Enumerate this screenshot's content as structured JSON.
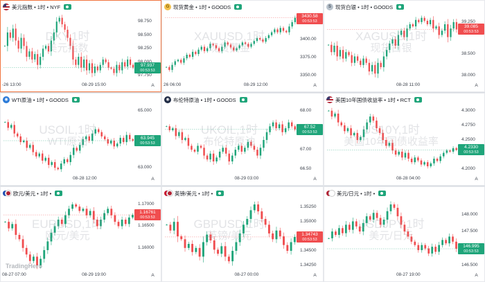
{
  "colors": {
    "up": "#1fa57a",
    "down": "#f04d4f",
    "active_border": "#f0753f"
  },
  "brand": "TradingHero",
  "panels": [
    {
      "title": "美元指数 • 1时 • NYF",
      "icon": "us-flag-icon",
      "wm1": "DXY,1时",
      "wm2": "美元指数",
      "yticks": [
        98.75,
        98.5,
        98.25,
        98.0,
        97.75
      ],
      "yticks_text": [
        "98.750",
        "98.500",
        "98.250",
        "98.000",
        "97.750"
      ],
      "xticks": [
        "-26 13:00",
        "08-29 15:00"
      ],
      "price": "97.937",
      "time": "00:53:53",
      "dir": "up",
      "series": [
        98.3,
        98.55,
        98.45,
        98.62,
        98.4,
        98.25,
        98.45,
        98.3,
        98.1,
        98.2,
        98.05,
        98.15,
        97.95,
        98.1,
        98.25,
        98.3,
        98.2,
        98.4,
        98.55,
        98.75,
        98.82,
        98.7,
        98.6,
        98.45,
        98.3,
        98.05,
        97.95,
        98.1,
        97.9,
        98.05,
        97.85,
        97.98,
        97.8,
        97.92,
        97.85,
        97.95,
        98.05,
        98.0,
        97.9,
        97.88,
        97.8,
        97.95,
        97.85,
        98.0,
        97.92,
        98.05,
        97.95,
        97.9
      ],
      "active": true
    },
    {
      "title": "现货黄金 • 1时 • GOODS",
      "icon": "gold-icon",
      "wm1": "XAUUSD,1时",
      "wm2": "现货黄金",
      "yticks": [
        3400.0,
        3375.0,
        3350.0
      ],
      "yticks_text": [
        "3400.00",
        "3375.00",
        "3350.00"
      ],
      "xticks": [
        "26 06:00",
        "08-29 12:00"
      ],
      "price": "3430.58",
      "time": "00:53:53",
      "dir": "down",
      "series": [
        3362,
        3358,
        3365,
        3370,
        3372,
        3368,
        3374,
        3379,
        3376,
        3383,
        3380,
        3386,
        3390,
        3384,
        3388,
        3394,
        3392,
        3388,
        3384,
        3390,
        3396,
        3393,
        3389,
        3385,
        3388,
        3392,
        3396,
        3394,
        3390,
        3394,
        3398,
        3402,
        3400,
        3397,
        3402,
        3406,
        3410,
        3414,
        3410,
        3416,
        3412,
        3410,
        3418,
        3424,
        3430
      ],
      "active": false
    },
    {
      "title": "现货白银 • 1时 • GOODS",
      "icon": "silver-icon",
      "wm1": "XAGUSD,1时",
      "wm2": "现货白银",
      "yticks": [
        39.25,
        39.0,
        38.5,
        38.0
      ],
      "yticks_text": [
        "39.250",
        "39.000",
        "38.500",
        "38.000"
      ],
      "xticks": [
        "08-28 11:00"
      ],
      "price": "39.085",
      "time": "00:53:53",
      "dir": "down",
      "series": [
        38.72,
        38.55,
        38.7,
        38.45,
        38.6,
        38.4,
        38.55,
        38.48,
        38.3,
        38.45,
        38.35,
        38.25,
        38.4,
        38.3,
        38.1,
        38.25,
        38.05,
        38.3,
        38.2,
        38.45,
        38.6,
        38.75,
        38.85,
        38.7,
        38.95,
        39.05,
        38.9,
        39.1,
        39.2,
        39.15,
        39.3,
        39.25,
        39.35,
        39.28,
        39.2,
        39.3,
        39.1,
        39.15,
        38.95,
        39.05,
        39.2,
        38.9,
        39.1,
        39.25,
        39.08
      ],
      "active": false
    },
    {
      "title": "WTI原油 • 1时 • GOODS",
      "icon": "wti-oil-icon",
      "wm1": "USOIL,1时",
      "wm2": "WTI原油",
      "yticks": [
        65.0,
        64.0,
        63.0
      ],
      "yticks_text": [
        "65.000",
        "64.000",
        "63.000"
      ],
      "xticks": [
        "08-28 12:00"
      ],
      "price": "63.945",
      "time": "00:53:53",
      "dir": "up",
      "series": [
        64.6,
        64.4,
        64.5,
        64.2,
        64.1,
        63.9,
        63.95,
        63.7,
        63.8,
        63.55,
        63.4,
        63.5,
        63.25,
        63.35,
        63.1,
        63.2,
        63.0,
        62.95,
        63.15,
        63.3,
        63.2,
        63.45,
        63.7,
        63.6,
        63.8,
        64.0,
        64.1,
        63.95,
        64.2,
        64.35,
        64.25,
        64.1,
        64.0,
        63.85,
        63.95,
        63.75,
        63.85,
        64.05,
        63.9,
        64.15,
        64.0,
        63.95
      ],
      "active": false
    },
    {
      "title": "布伦特原油 • 1时 • GOODS",
      "icon": "brent-oil-icon",
      "wm1": "UKOIL,1时",
      "wm2": "布伦特原油",
      "yticks": [
        68.0,
        67.5,
        67.0,
        66.5
      ],
      "yticks_text": [
        "68.00",
        "67.50",
        "67.00",
        "66.50"
      ],
      "xticks": [
        "08-29 03:00"
      ],
      "price": "67.52",
      "time": "00:53:53",
      "dir": "up",
      "series": [
        67.6,
        67.5,
        67.55,
        67.35,
        67.45,
        67.25,
        67.3,
        67.1,
        67.0,
        66.95,
        67.1,
        67.05,
        66.85,
        66.75,
        66.9,
        66.7,
        66.8,
        66.95,
        67.05,
        66.9,
        66.7,
        66.85,
        67.0,
        67.1,
        66.95,
        67.05,
        67.2,
        67.1,
        67.0,
        66.85,
        67.05,
        67.25,
        67.45,
        67.6,
        67.7,
        67.55,
        67.65,
        67.45,
        67.55,
        67.7,
        67.6,
        67.52
      ],
      "active": false
    },
    {
      "title": "美国10年国债收益率 • 1时 • RCT",
      "icon": "us-flag-icon",
      "wm1": "US10Y,1时",
      "wm2": "美国10年国债收益率",
      "yticks": [
        4.3,
        4.275,
        4.25,
        4.225,
        4.2
      ],
      "yticks_text": [
        "4.3000",
        "4.2750",
        "4.2500",
        "4.2250",
        "4.2000"
      ],
      "xticks": [
        "08-28 04:00"
      ],
      "price": "4.2330",
      "time": "00:53:53",
      "dir": "up",
      "series": [
        4.3,
        4.29,
        4.295,
        4.28,
        4.275,
        4.265,
        4.27,
        4.258,
        4.262,
        4.25,
        4.255,
        4.268,
        4.28,
        4.29,
        4.283,
        4.27,
        4.262,
        4.25,
        4.24,
        4.245,
        4.232,
        4.225,
        4.23,
        4.22,
        4.228,
        4.218,
        4.212,
        4.22,
        4.215,
        4.208,
        4.212,
        4.205,
        4.21,
        4.218,
        4.214,
        4.222,
        4.228,
        4.232,
        4.23,
        4.236,
        4.233
      ],
      "active": false
    },
    {
      "title": "欧元/美元 • 1时 •",
      "icon": "eur-usd-icon",
      "wm1": "EURUSD,1时",
      "wm2": "欧元/美元",
      "yticks": [
        1.17,
        1.165,
        1.16
      ],
      "yticks_text": [
        "1.17000",
        "1.16500",
        "1.16000"
      ],
      "xticks": [
        "08-27 07:00",
        "08-29 19:00"
      ],
      "price": "1.16761",
      "time": "00:53:53",
      "dir": "down",
      "series": [
        1.166,
        1.1645,
        1.1655,
        1.163,
        1.162,
        1.16,
        1.1585,
        1.157,
        1.158,
        1.156,
        1.1575,
        1.1595,
        1.1615,
        1.1635,
        1.165,
        1.1665,
        1.1655,
        1.1675,
        1.169,
        1.17,
        1.1695,
        1.1685,
        1.169,
        1.1675,
        1.1685,
        1.1665,
        1.165,
        1.1665,
        1.168,
        1.169,
        1.1675,
        1.166,
        1.165,
        1.1665,
        1.1655,
        1.167,
        1.1676
      ],
      "active": false
    },
    {
      "title": "英镑/美元 • 1时 •",
      "icon": "gbp-usd-icon",
      "wm1": "GBPUSD,1时",
      "wm2": "英镑/美元",
      "yticks": [
        1.3525,
        1.35,
        1.3475,
        1.345,
        1.3425
      ],
      "yticks_text": [
        "1.35250",
        "1.35000",
        "1.34750",
        "1.34500",
        "1.34250"
      ],
      "xticks": [
        "08-27 00:00"
      ],
      "price": "1.34743",
      "time": "00:53:53",
      "dir": "down",
      "series": [
        1.3495,
        1.3485,
        1.35,
        1.3475,
        1.347,
        1.3455,
        1.3462,
        1.3448,
        1.3455,
        1.344,
        1.3465,
        1.3478,
        1.3468,
        1.3452,
        1.3445,
        1.3458,
        1.344,
        1.3432,
        1.345,
        1.3465,
        1.348,
        1.3495,
        1.3505,
        1.352,
        1.353,
        1.3518,
        1.3505,
        1.3495,
        1.348,
        1.347,
        1.3485,
        1.3475,
        1.346,
        1.345,
        1.3465,
        1.3474
      ],
      "active": false
    },
    {
      "title": "美元/日元 • 1时 •",
      "icon": "usd-jpy-icon",
      "wm1": "USDJPY,1时",
      "wm2": "美元/日元",
      "yticks": [
        148.0,
        147.5,
        147.0,
        146.5
      ],
      "yticks_text": [
        "148.000",
        "147.500",
        "147.000",
        "146.500"
      ],
      "xticks": [
        "08-27 19:00"
      ],
      "price": "146.995",
      "time": "00:53:53",
      "dir": "up",
      "series": [
        147.3,
        147.5,
        147.4,
        147.6,
        147.45,
        147.7,
        147.55,
        147.8,
        147.65,
        147.5,
        147.75,
        147.95,
        147.85,
        148.05,
        147.9,
        147.7,
        147.85,
        148.1,
        148.3,
        148.2,
        147.95,
        147.7,
        147.5,
        147.35,
        147.2,
        147.1,
        146.95,
        147.1,
        147.0,
        146.85,
        147.05,
        146.9,
        147.1,
        147.25,
        147.15,
        147.35,
        147.2,
        146.99
      ],
      "active": false
    }
  ]
}
